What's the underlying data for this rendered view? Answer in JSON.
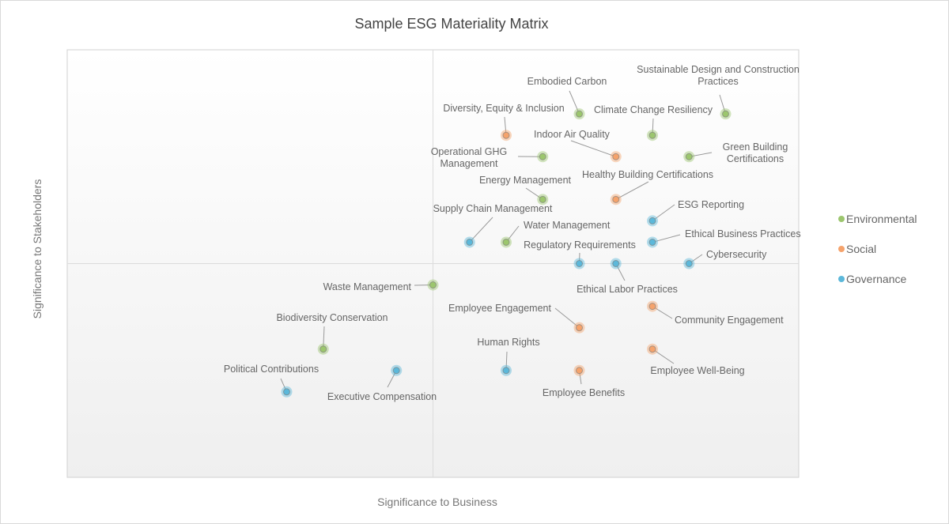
{
  "chart_data": {
    "type": "scatter",
    "title": "Sample ESG Materiality Matrix",
    "xlabel": "Significance to Business",
    "ylabel": "Significance to Stakeholders",
    "xlim": [
      0,
      20
    ],
    "ylim": [
      0,
      20
    ],
    "quadrant_lines": {
      "x": 10,
      "y": 10
    },
    "grid": false,
    "legend_position": "right",
    "series": [
      {
        "name": "Environmental",
        "color": "#9cc66e",
        "points": [
          {
            "label": "Embodied Carbon",
            "x": 14,
            "y": 17
          },
          {
            "label": "Sustainable Design and Construction Practices",
            "x": 18,
            "y": 17
          },
          {
            "label": "Climate Change Resiliency",
            "x": 16,
            "y": 16
          },
          {
            "label": "Operational GHG Management",
            "x": 13,
            "y": 15
          },
          {
            "label": "Green Building Certifications",
            "x": 17,
            "y": 15
          },
          {
            "label": "Energy Management",
            "x": 13,
            "y": 13
          },
          {
            "label": "Water Management",
            "x": 12,
            "y": 11
          },
          {
            "label": "Waste Management",
            "x": 10,
            "y": 9
          },
          {
            "label": "Biodiversity Conservation",
            "x": 7,
            "y": 6
          }
        ]
      },
      {
        "name": "Social",
        "color": "#f5a36c",
        "points": [
          {
            "label": "Diversity, Equity & Inclusion",
            "x": 12,
            "y": 16
          },
          {
            "label": "Indoor Air Quality",
            "x": 15,
            "y": 15
          },
          {
            "label": "Healthy Building Certifications",
            "x": 15,
            "y": 13
          },
          {
            "label": "Community Engagement",
            "x": 16,
            "y": 8
          },
          {
            "label": "Employee Engagement",
            "x": 14,
            "y": 7
          },
          {
            "label": "Employee Well-Being",
            "x": 16,
            "y": 6
          },
          {
            "label": "Employee Benefits",
            "x": 14,
            "y": 5
          }
        ]
      },
      {
        "name": "Governance",
        "color": "#5cb8da",
        "points": [
          {
            "label": "ESG Reporting",
            "x": 16,
            "y": 12
          },
          {
            "label": "Supply Chain Management",
            "x": 11,
            "y": 11
          },
          {
            "label": "Ethical Business Practices",
            "x": 16,
            "y": 11
          },
          {
            "label": "Regulatory Requirements",
            "x": 14,
            "y": 10
          },
          {
            "label": "Ethical Labor Practices",
            "x": 15,
            "y": 10
          },
          {
            "label": "Cybersecurity",
            "x": 17,
            "y": 10
          },
          {
            "label": "Human Rights",
            "x": 12,
            "y": 5
          },
          {
            "label": "Executive Compensation",
            "x": 9,
            "y": 5
          },
          {
            "label": "Political Contributions",
            "x": 6,
            "y": 4
          }
        ]
      }
    ]
  }
}
